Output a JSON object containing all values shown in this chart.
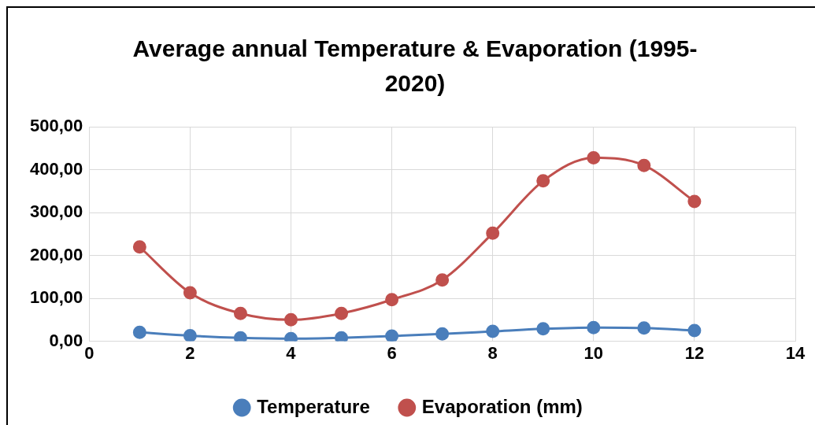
{
  "chart_data": {
    "type": "line",
    "title": "Average annual Temperature & Evaporation (1995-2020)",
    "x": [
      1,
      2,
      3,
      4,
      5,
      6,
      7,
      8,
      9,
      10,
      11,
      12
    ],
    "series": [
      {
        "name": "Temperature",
        "color": "#4a7ebb",
        "values": [
          21,
          13,
          8,
          6,
          8,
          12,
          17,
          23,
          29,
          32,
          31,
          25
        ]
      },
      {
        "name": "Evaporation (mm)",
        "color": "#c0504d",
        "values": [
          220,
          113,
          65,
          50,
          65,
          97,
          143,
          252,
          374,
          428,
          410,
          326
        ]
      }
    ],
    "xlim": [
      0,
      14
    ],
    "xticks": [
      0,
      2,
      4,
      6,
      8,
      10,
      12,
      14
    ],
    "ylim": [
      0,
      500
    ],
    "yticks": [
      {
        "value": 0,
        "label": "0,00"
      },
      {
        "value": 100,
        "label": "100,00"
      },
      {
        "value": 200,
        "label": "200,00"
      },
      {
        "value": 300,
        "label": "300,00"
      },
      {
        "value": 400,
        "label": "400,00"
      },
      {
        "value": 500,
        "label": "500,00"
      }
    ],
    "grid": true,
    "legend": "bottom",
    "marker": "circle",
    "line_style": "solid"
  }
}
